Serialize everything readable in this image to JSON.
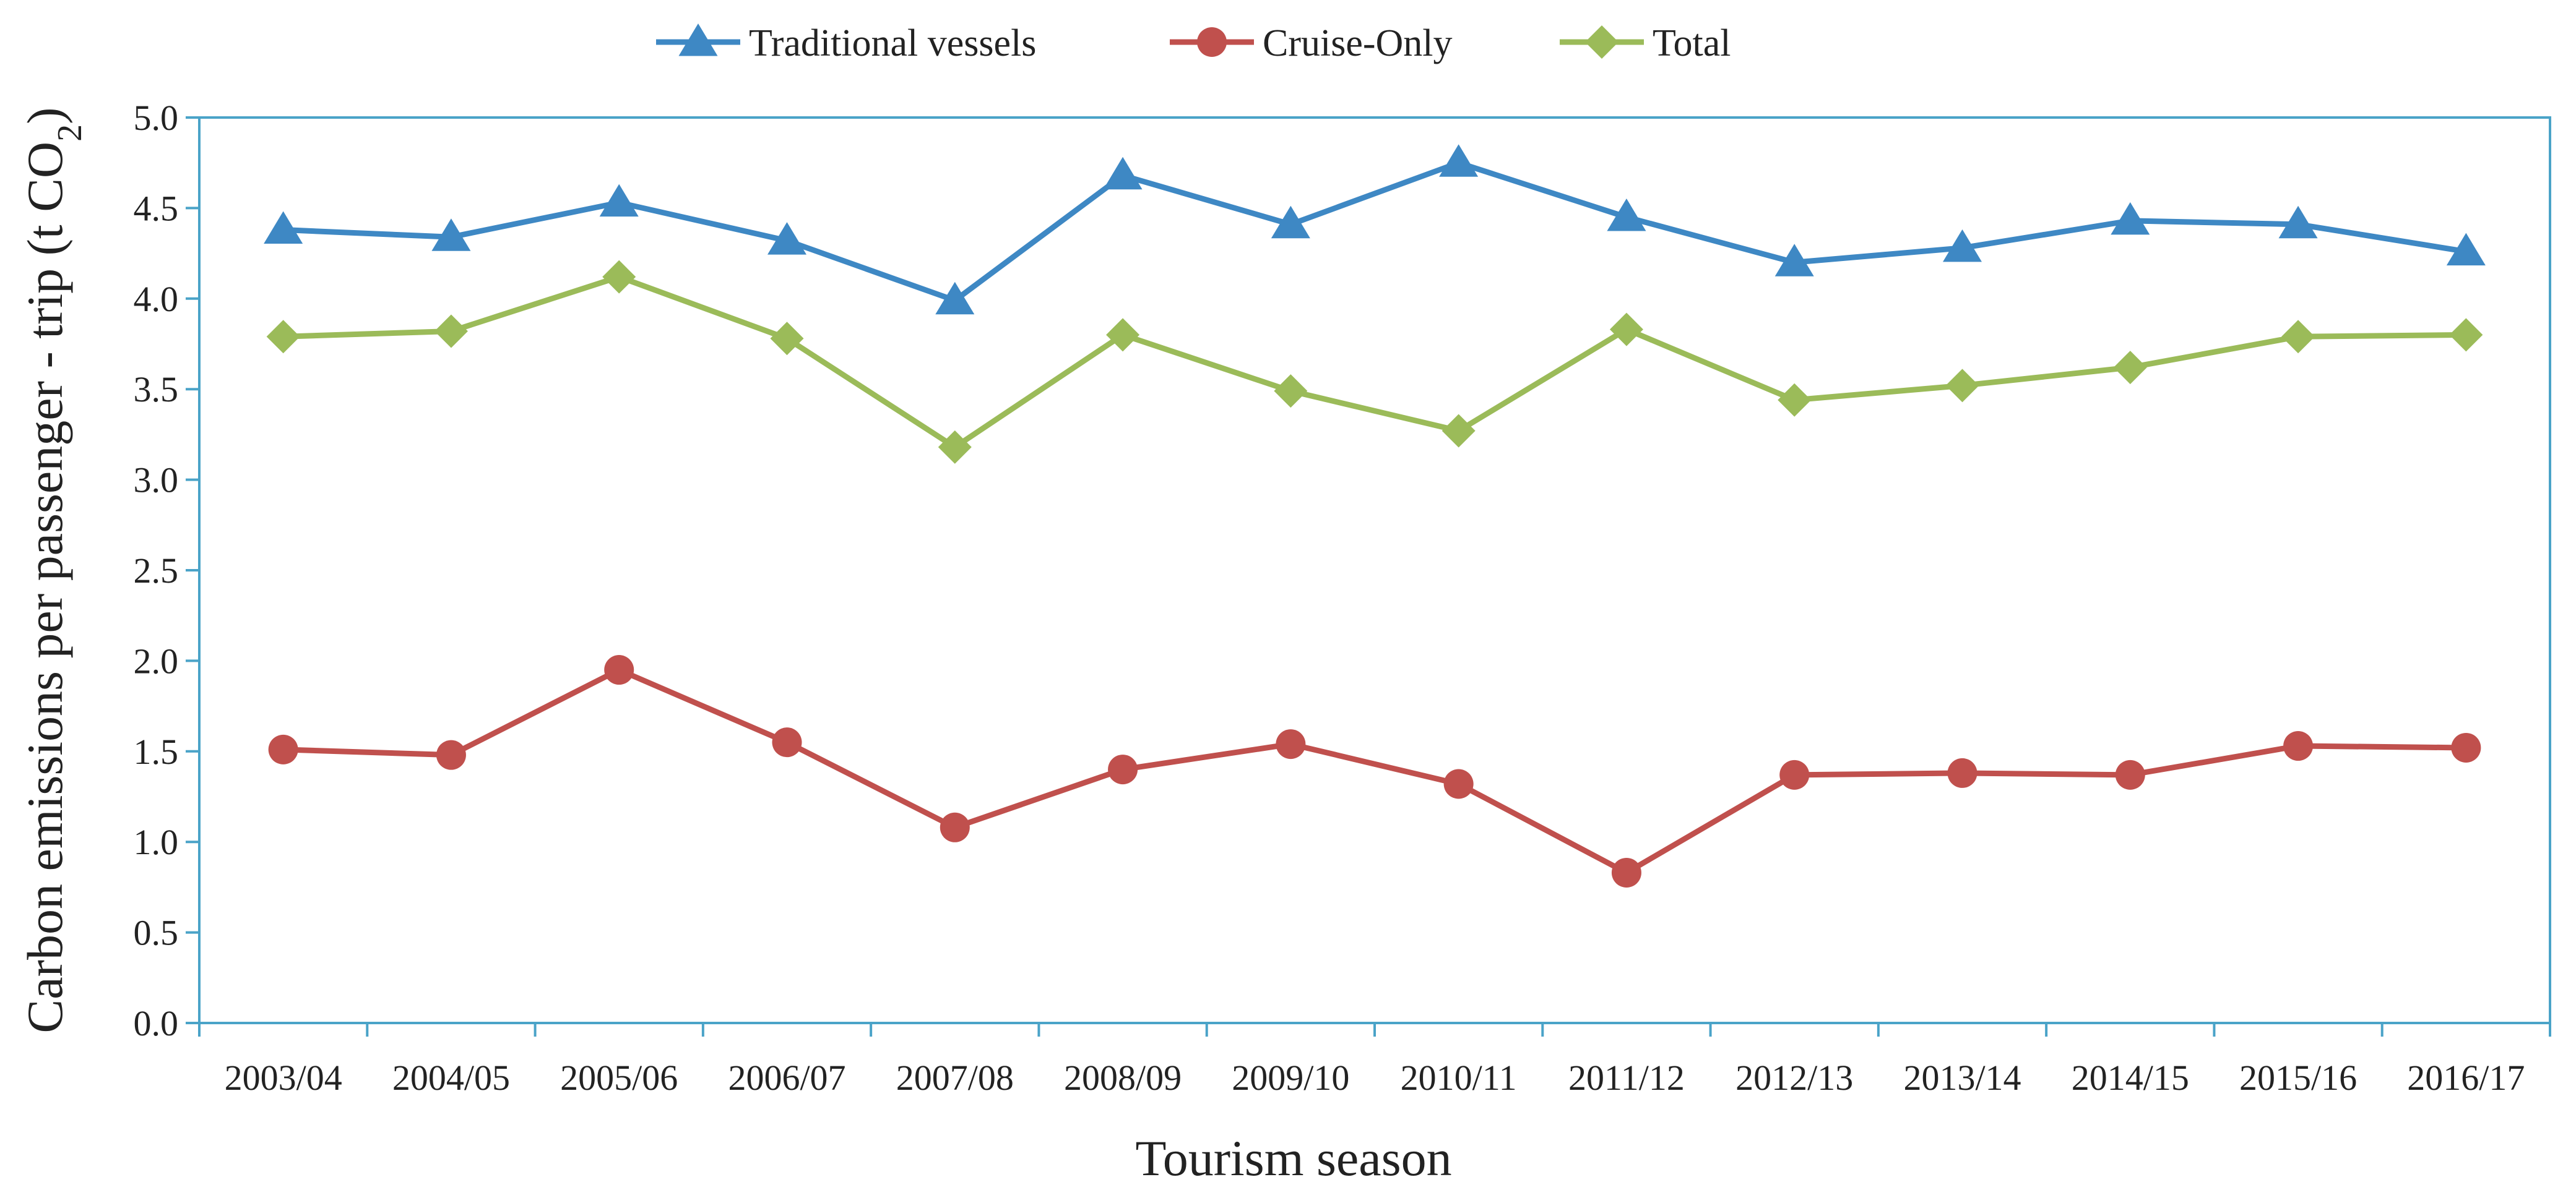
{
  "chart_data": {
    "type": "line",
    "title": "",
    "xlabel": "Tourism season",
    "ylabel": "Carbon emissions per passenger - trip (t CO",
    "ylabel_subscript": "2",
    "ylabel_suffix": ")",
    "ylim": [
      0,
      5
    ],
    "ytick_step": 0.5,
    "yticks": [
      "0.0",
      "0.5",
      "1.0",
      "1.5",
      "2.0",
      "2.5",
      "3.0",
      "3.5",
      "4.0",
      "4.5",
      "5.0"
    ],
    "grid": false,
    "legend_position": "top-center",
    "categories": [
      "2003/04",
      "2004/05",
      "2005/06",
      "2006/07",
      "2007/08",
      "2008/09",
      "2009/10",
      "2010/11",
      "2011/12",
      "2012/13",
      "2013/14",
      "2014/15",
      "2015/16",
      "2016/17"
    ],
    "series": [
      {
        "name": "Traditional vessels",
        "color": "#3e88c4",
        "marker": "triangle",
        "values": [
          4.38,
          4.34,
          4.53,
          4.32,
          3.99,
          4.68,
          4.41,
          4.75,
          4.45,
          4.2,
          4.28,
          4.43,
          4.41,
          4.26
        ]
      },
      {
        "name": "Cruise-Only",
        "color": "#c0504d",
        "marker": "circle",
        "values": [
          1.51,
          1.48,
          1.95,
          1.55,
          1.08,
          1.4,
          1.54,
          1.32,
          0.83,
          1.37,
          1.38,
          1.37,
          1.53,
          1.52
        ]
      },
      {
        "name": "Total",
        "color": "#9bbb59",
        "marker": "diamond",
        "values": [
          3.79,
          3.82,
          4.12,
          3.78,
          3.18,
          3.8,
          3.49,
          3.27,
          3.83,
          3.44,
          3.52,
          3.62,
          3.79,
          3.8
        ]
      }
    ]
  }
}
